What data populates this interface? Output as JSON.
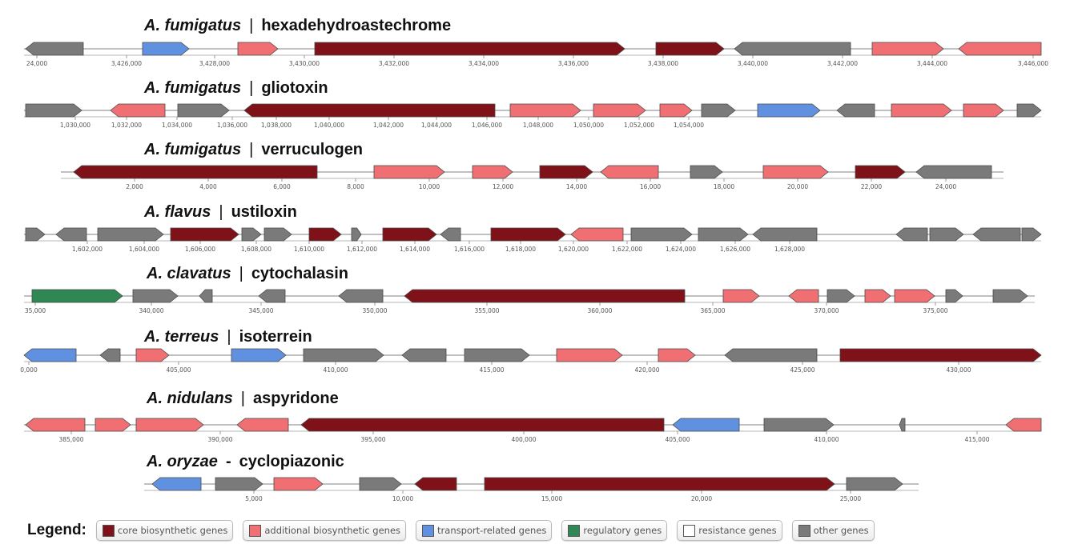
{
  "colors": {
    "core": "#7f1218",
    "additional": "#ef6f72",
    "transport": "#6090e0",
    "regulatory": "#2f8754",
    "resistance": "#ffffff",
    "other": "#7a7a7a"
  },
  "clusters": [
    {
      "organism": "A. fumigatus",
      "separator": "|",
      "product": "hexadehydroastechrome",
      "ticks": [
        "24,000",
        "3,426,000",
        "3,428,000",
        "3,430,000",
        "3,432,000",
        "3,434,000",
        "3,436,000",
        "3,438,000",
        "3,440,000",
        "3,442,000",
        "3,444,000",
        "3,446,000"
      ],
      "genes": [
        {
          "type": "other",
          "dir": "-"
        },
        {
          "type": "transport",
          "dir": "+"
        },
        {
          "type": "additional",
          "dir": "+"
        },
        {
          "type": "core",
          "dir": "+"
        },
        {
          "type": "core",
          "dir": "+"
        },
        {
          "type": "other",
          "dir": "-"
        },
        {
          "type": "additional",
          "dir": "+"
        },
        {
          "type": "additional",
          "dir": "-"
        }
      ]
    },
    {
      "organism": "A. fumigatus",
      "separator": "|",
      "product": "gliotoxin",
      "ticks": [
        "1,030,000",
        "1,032,000",
        "1,034,000",
        "1,036,000",
        "1,038,000",
        "1,040,000",
        "1,042,000",
        "1,044,000",
        "1,046,000",
        "1,048,000",
        "1,050,000",
        "1,052,000",
        "1,054,000"
      ],
      "genes": [
        {
          "type": "other",
          "dir": "+"
        },
        {
          "type": "additional",
          "dir": "-"
        },
        {
          "type": "other",
          "dir": "+"
        },
        {
          "type": "core",
          "dir": "-"
        },
        {
          "type": "additional",
          "dir": "+"
        },
        {
          "type": "additional",
          "dir": "+"
        },
        {
          "type": "additional",
          "dir": "+"
        },
        {
          "type": "other",
          "dir": "+"
        },
        {
          "type": "transport",
          "dir": "+"
        },
        {
          "type": "other",
          "dir": "-"
        },
        {
          "type": "additional",
          "dir": "+"
        },
        {
          "type": "additional",
          "dir": "+"
        },
        {
          "type": "other",
          "dir": "+"
        }
      ]
    },
    {
      "organism": "A. fumigatus",
      "separator": "|",
      "product": "verruculogen",
      "ticks": [
        "2,000",
        "4,000",
        "6,000",
        "8,000",
        "10,000",
        "12,000",
        "14,000",
        "16,000",
        "18,000",
        "20,000",
        "22,000",
        "24,000"
      ],
      "genes": [
        {
          "type": "core",
          "dir": "-"
        },
        {
          "type": "additional",
          "dir": "+"
        },
        {
          "type": "additional",
          "dir": "+"
        },
        {
          "type": "core",
          "dir": "+"
        },
        {
          "type": "additional",
          "dir": "-"
        },
        {
          "type": "other",
          "dir": "+"
        },
        {
          "type": "additional",
          "dir": "+"
        },
        {
          "type": "core",
          "dir": "+"
        },
        {
          "type": "other",
          "dir": "-"
        }
      ]
    },
    {
      "organism": "A. flavus",
      "separator": "|",
      "product": "ustiloxin",
      "ticks": [
        "1,602,000",
        "1,604,000",
        "1,606,000",
        "1,608,000",
        "1,610,000",
        "1,612,000",
        "1,614,000",
        "1,616,000",
        "1,618,000",
        "1,620,000",
        "1,622,000",
        "1,624,000",
        "1,626,000",
        "1,628,000"
      ],
      "genes": [
        {
          "type": "other",
          "dir": "+"
        },
        {
          "type": "other",
          "dir": "-"
        },
        {
          "type": "other",
          "dir": "+"
        },
        {
          "type": "core",
          "dir": "+"
        },
        {
          "type": "other",
          "dir": "+"
        },
        {
          "type": "other",
          "dir": "+"
        },
        {
          "type": "core",
          "dir": "+"
        },
        {
          "type": "other",
          "dir": "+"
        },
        {
          "type": "core",
          "dir": "+"
        },
        {
          "type": "other",
          "dir": "-"
        },
        {
          "type": "core",
          "dir": "+"
        },
        {
          "type": "additional",
          "dir": "-"
        },
        {
          "type": "other",
          "dir": "+"
        },
        {
          "type": "other",
          "dir": "+"
        },
        {
          "type": "other",
          "dir": "-"
        },
        {
          "type": "other",
          "dir": "-"
        },
        {
          "type": "other",
          "dir": "+"
        },
        {
          "type": "other",
          "dir": "-"
        },
        {
          "type": "other",
          "dir": "+"
        }
      ]
    },
    {
      "organism": "A. clavatus",
      "separator": "|",
      "product": "cytochalasin",
      "ticks": [
        "35,000",
        "340,000",
        "345,000",
        "350,000",
        "355,000",
        "360,000",
        "365,000",
        "370,000",
        "375,000"
      ],
      "genes": [
        {
          "type": "regulatory",
          "dir": "+"
        },
        {
          "type": "other",
          "dir": "+"
        },
        {
          "type": "other",
          "dir": "-"
        },
        {
          "type": "other",
          "dir": "-"
        },
        {
          "type": "other",
          "dir": "-"
        },
        {
          "type": "core",
          "dir": "-"
        },
        {
          "type": "additional",
          "dir": "+"
        },
        {
          "type": "additional",
          "dir": "-"
        },
        {
          "type": "other",
          "dir": "+"
        },
        {
          "type": "additional",
          "dir": "+"
        },
        {
          "type": "additional",
          "dir": "+"
        },
        {
          "type": "other",
          "dir": "+"
        },
        {
          "type": "other",
          "dir": "+"
        }
      ]
    },
    {
      "organism": "A. terreus",
      "separator": "|",
      "product": "isoterrein",
      "ticks": [
        "0,000",
        "405,000",
        "410,000",
        "415,000",
        "420,000",
        "425,000",
        "430,000"
      ],
      "genes": [
        {
          "type": "transport",
          "dir": "-"
        },
        {
          "type": "other",
          "dir": "-"
        },
        {
          "type": "additional",
          "dir": "+"
        },
        {
          "type": "transport",
          "dir": "+"
        },
        {
          "type": "other",
          "dir": "+"
        },
        {
          "type": "other",
          "dir": "-"
        },
        {
          "type": "other",
          "dir": "+"
        },
        {
          "type": "additional",
          "dir": "+"
        },
        {
          "type": "additional",
          "dir": "+"
        },
        {
          "type": "other",
          "dir": "-"
        },
        {
          "type": "core",
          "dir": "+"
        }
      ]
    },
    {
      "organism": "A. nidulans",
      "separator": "|",
      "product": "aspyridone",
      "ticks": [
        "385,000",
        "390,000",
        "395,000",
        "400,000",
        "405,000",
        "410,000",
        "415,000"
      ],
      "genes": [
        {
          "type": "additional",
          "dir": "-"
        },
        {
          "type": "additional",
          "dir": "+"
        },
        {
          "type": "additional",
          "dir": "+"
        },
        {
          "type": "additional",
          "dir": "-"
        },
        {
          "type": "core",
          "dir": "-"
        },
        {
          "type": "transport",
          "dir": "-"
        },
        {
          "type": "other",
          "dir": "+"
        },
        {
          "type": "other",
          "dir": "-"
        },
        {
          "type": "additional",
          "dir": "-"
        }
      ]
    },
    {
      "organism": "A. oryzae",
      "separator": "-",
      "product": "cyclopiazonic",
      "ticks": [
        "5,000",
        "10,000",
        "15,000",
        "20,000",
        "25,000"
      ],
      "genes": [
        {
          "type": "transport",
          "dir": "-"
        },
        {
          "type": "other",
          "dir": "+"
        },
        {
          "type": "additional",
          "dir": "+"
        },
        {
          "type": "other",
          "dir": "+"
        },
        {
          "type": "core",
          "dir": "-"
        },
        {
          "type": "core",
          "dir": "+"
        },
        {
          "type": "other",
          "dir": "+"
        }
      ]
    }
  ],
  "legend": {
    "title": "Legend:",
    "items": [
      {
        "key": "core",
        "label": "core biosynthetic genes"
      },
      {
        "key": "additional",
        "label": "additional biosynthetic genes"
      },
      {
        "key": "transport",
        "label": "transport-related genes"
      },
      {
        "key": "regulatory",
        "label": "regulatory genes"
      },
      {
        "key": "resistance",
        "label": "resistance genes"
      },
      {
        "key": "other",
        "label": "other genes"
      }
    ]
  }
}
